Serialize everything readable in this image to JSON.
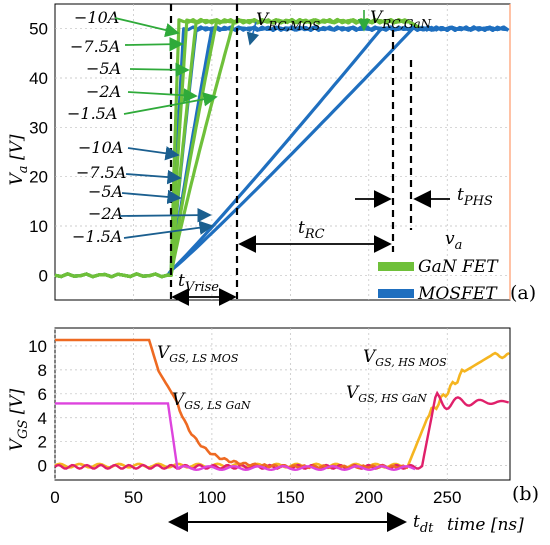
{
  "chart_data": [
    {
      "type": "line",
      "panel_label": "(a)",
      "ylabel": "V_a [V]",
      "ylim": [
        -5,
        55
      ],
      "xlim": [
        0,
        290
      ],
      "yticks": [
        0,
        10,
        20,
        30,
        40,
        50
      ],
      "legend": {
        "placement": "bottom-right",
        "title": "v_a",
        "entries": [
          "GaN FET",
          "MOSFET"
        ]
      },
      "series": [
        {
          "name": "GaN FET",
          "color": "#6fc03a",
          "curves": [
            {
              "current": "-10A",
              "rise_start": 74,
              "rise_end": 79
            },
            {
              "current": "-7.5A",
              "rise_start": 74,
              "rise_end": 84
            },
            {
              "current": "-5A",
              "rise_start": 74,
              "rise_end": 90
            },
            {
              "current": "-2A",
              "rise_start": 74,
              "rise_end": 103
            },
            {
              "current": "-1.5A",
              "rise_start": 74,
              "rise_end": 114
            }
          ],
          "plateau": 51.5,
          "plateau_end": 225
        },
        {
          "name": "MOSFET",
          "color": "#1f6fbf",
          "curves": [
            {
              "current": "-10A",
              "rise_start": 74,
              "rise_end": 82
            },
            {
              "current": "-7.5A",
              "rise_start": 74,
              "rise_end": 90
            },
            {
              "current": "-5A",
              "rise_start": 74,
              "rise_end": 100
            },
            {
              "current": "-2A",
              "rise_start": 74,
              "rise_end": 208
            },
            {
              "current": "-1.5A",
              "rise_start": 74,
              "rise_end": 228
            }
          ],
          "plateau": 50,
          "plateau_end": 290
        }
      ],
      "annotations": [
        "V_RC,MOS",
        "V_RC,GaN",
        "t_Vrise",
        "t_RC",
        "t_PHS"
      ],
      "green_current_labels": [
        "−10A",
        "−7.5A",
        "−5A",
        "−2A",
        "−1.5A"
      ],
      "blue_current_labels": [
        "−10A",
        "−7.5A",
        "−5A",
        "−2A",
        "−1.5A"
      ]
    },
    {
      "type": "line",
      "panel_label": "(b)",
      "ylabel": "V_GS [V]",
      "xlabel": "time [ns]",
      "xlim": [
        0,
        290
      ],
      "ylim": [
        -1.2,
        11.5
      ],
      "yticks": [
        0,
        2,
        4,
        6,
        8,
        10
      ],
      "xticks": [
        0,
        50,
        100,
        150,
        200,
        250
      ],
      "series": [
        {
          "name": "V_GS, LS MOS",
          "color": "#ee6a22"
        },
        {
          "name": "V_GS, LS GaN",
          "color": "#dd44dd"
        },
        {
          "name": "V_GS, HS MOS",
          "color": "#f5b520"
        },
        {
          "name": "V_GS, HS GaN",
          "color": "#e0206a"
        }
      ],
      "annotations": [
        "t_dt"
      ]
    }
  ],
  "text": {
    "panel_a": "(a)",
    "panel_b": "(b)",
    "legend_title": "v",
    "legend_title_sub": "a",
    "legend_gan": "GaN FET",
    "legend_mos": "MOSFET",
    "ylabel_a_main": "V",
    "ylabel_a_sub": "a",
    "ylabel_a_unit": " [V]",
    "ylabel_b_main": "V",
    "ylabel_b_sub": "GS",
    "ylabel_b_unit": " [V]",
    "xlabel_b": "time [ns]",
    "vrc_mos_main": "V",
    "vrc_mos_sub": "RC,MOS",
    "vrc_gan_main": "V",
    "vrc_gan_sub": "RC,GaN",
    "tvrise_main": "t",
    "tvrise_sub": "Vrise",
    "trc_main": "t",
    "trc_sub": "RC",
    "tphs_main": "t",
    "tphs_sub": "PHS",
    "tdt_main": "t",
    "tdt_sub": "dt",
    "lsmos_main": "V",
    "lsmos_sub": "GS, LS MOS",
    "lsgan_main": "V",
    "lsgan_sub": "GS, LS GaN",
    "hsmos_main": "V",
    "hsmos_sub": "GS, HS MOS",
    "hsgan_main": "V",
    "hsgan_sub": "GS, HS GaN"
  },
  "colors": {
    "gan": "#6fc03a",
    "mos": "#1f6fbf",
    "ls_mos": "#ee6a22",
    "ls_gan": "#dd44dd",
    "hs_mos": "#f5b520",
    "hs_gan": "#e0206a",
    "right_axis": "#ff9a6a"
  }
}
